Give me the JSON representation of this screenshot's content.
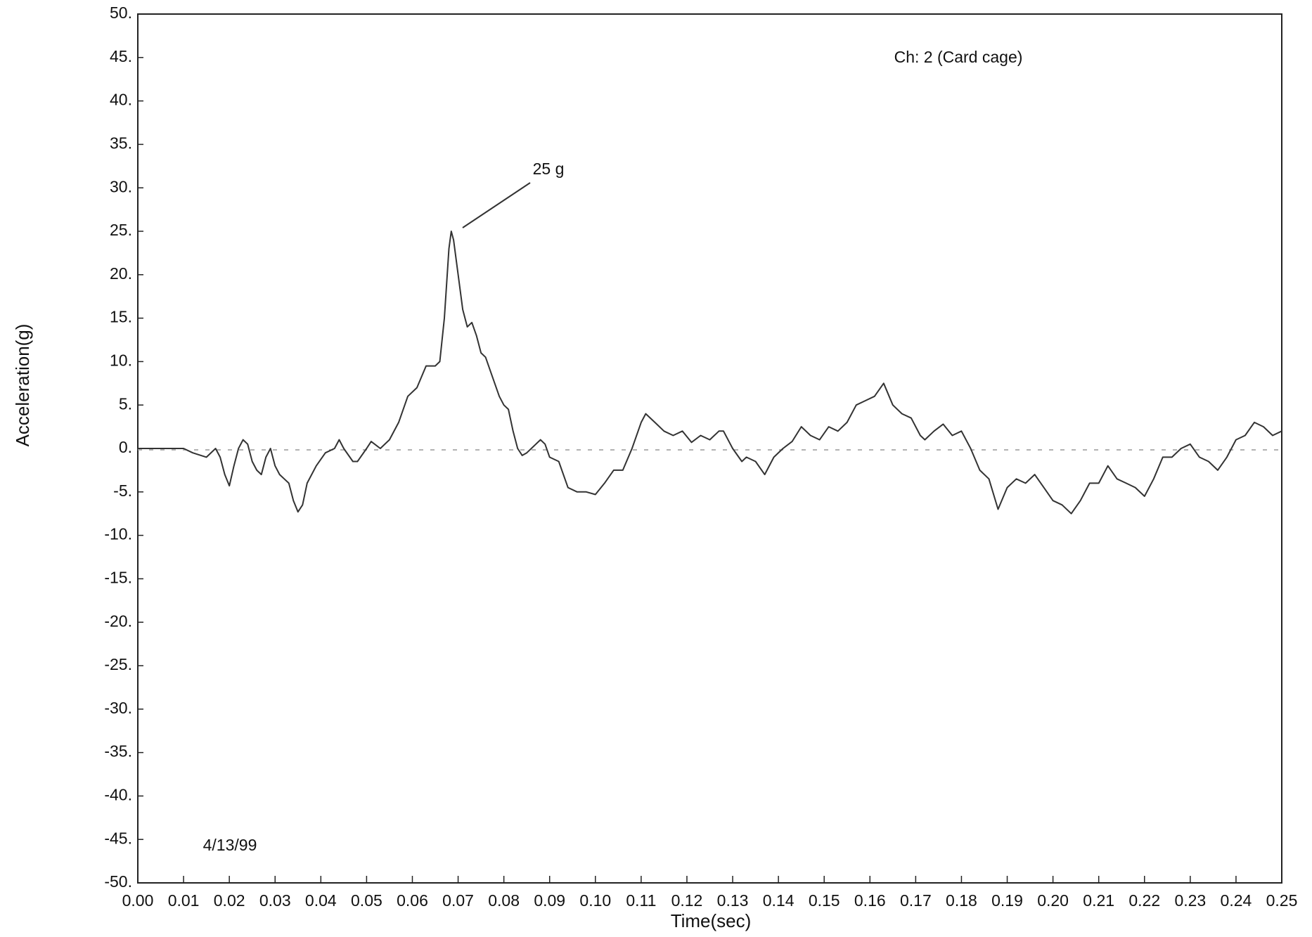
{
  "chart_data": {
    "type": "line",
    "xlabel": "Time(sec)",
    "ylabel": "Acceleration(g)",
    "annotations": [
      "Ch: 2 (Card cage)",
      "25 g",
      "4/13/99"
    ],
    "xlim": [
      0,
      0.25
    ],
    "ylim": [
      -50,
      50
    ],
    "xticks": [
      {
        "value": 0,
        "label": "0.00"
      },
      0.01,
      0.02,
      0.03,
      0.04,
      0.05,
      0.06,
      0.07,
      0.08,
      0.09,
      {
        "value": 0.1,
        "label": "0.10"
      },
      0.11,
      0.12,
      0.13,
      0.14,
      0.15,
      0.16,
      0.17,
      0.18,
      0.19,
      {
        "value": 0.2,
        "label": "0.20"
      },
      0.21,
      0.22,
      0.23,
      0.24,
      0.25
    ],
    "yticks": [
      {
        "value": 50,
        "label": "50."
      },
      {
        "value": 45,
        "label": "45."
      },
      {
        "value": 40,
        "label": "40."
      },
      {
        "value": 35,
        "label": "35."
      },
      {
        "value": 30,
        "label": "30."
      },
      {
        "value": 25,
        "label": "25."
      },
      {
        "value": 20,
        "label": "20."
      },
      {
        "value": 15,
        "label": "15."
      },
      {
        "value": 10,
        "label": "10."
      },
      {
        "value": 5,
        "label": "5."
      },
      {
        "value": 0,
        "label": "0."
      },
      {
        "value": -5,
        "label": "-5."
      },
      {
        "value": -10,
        "label": "-10."
      },
      {
        "value": -15,
        "label": "-15."
      },
      {
        "value": -20,
        "label": "-20."
      },
      {
        "value": -25,
        "label": "-25."
      },
      {
        "value": -30,
        "label": "-30."
      },
      {
        "value": -35,
        "label": "-35."
      },
      {
        "value": -40,
        "label": "-40."
      },
      {
        "value": -45,
        "label": "-45."
      },
      {
        "value": -50,
        "label": "-50."
      }
    ],
    "grid": false,
    "x": [
      0,
      0.01,
      0.012,
      0.015,
      0.017,
      0.018,
      0.019,
      0.02,
      0.021,
      0.022,
      0.023,
      0.024,
      0.025,
      0.026,
      0.027,
      0.028,
      0.029,
      0.03,
      0.031,
      0.032,
      0.033,
      0.034,
      0.035,
      0.036,
      0.037,
      0.039,
      0.041,
      0.043,
      0.044,
      0.045,
      0.047,
      0.048,
      0.05,
      0.051,
      0.053,
      0.055,
      0.057,
      0.059,
      0.061,
      0.063,
      0.065,
      0.066,
      0.067,
      0.068,
      0.0685,
      0.069,
      0.07,
      0.071,
      0.072,
      0.073,
      0.074,
      0.075,
      0.076,
      0.077,
      0.079,
      0.08,
      0.081,
      0.082,
      0.083,
      0.084,
      0.085,
      0.087,
      0.088,
      0.089,
      0.09,
      0.092,
      0.094,
      0.096,
      0.098,
      0.1,
      0.102,
      0.104,
      0.106,
      0.108,
      0.11,
      0.111,
      0.113,
      0.115,
      0.117,
      0.119,
      0.121,
      0.123,
      0.125,
      0.127,
      0.128,
      0.13,
      0.132,
      0.133,
      0.135,
      0.137,
      0.139,
      0.141,
      0.143,
      0.145,
      0.147,
      0.149,
      0.151,
      0.153,
      0.155,
      0.157,
      0.159,
      0.161,
      0.163,
      0.165,
      0.167,
      0.169,
      0.171,
      0.172,
      0.174,
      0.176,
      0.178,
      0.18,
      0.182,
      0.184,
      0.186,
      0.188,
      0.19,
      0.192,
      0.194,
      0.196,
      0.198,
      0.2,
      0.202,
      0.204,
      0.206,
      0.208,
      0.21,
      0.212,
      0.214,
      0.216,
      0.218,
      0.22,
      0.222,
      0.224,
      0.226,
      0.228,
      0.23,
      0.232,
      0.234,
      0.236,
      0.238,
      0.24,
      0.242,
      0.244,
      0.246,
      0.248,
      0.25
    ],
    "series": [
      {
        "color": "#333333",
        "values": [
          0,
          0,
          -0.5,
          -1,
          0,
          -1,
          -3,
          -4.3,
          -2,
          0,
          1,
          0.5,
          -1.5,
          -2.5,
          -3,
          -1,
          0,
          -2,
          -3,
          -3.5,
          -4,
          -6,
          -7.3,
          -6.5,
          -4,
          -2,
          -0.5,
          0,
          1,
          0,
          -1.5,
          -1.5,
          0,
          0.8,
          0,
          1,
          3,
          6,
          7,
          9.5,
          9.5,
          10,
          15,
          23,
          25,
          24,
          20,
          16,
          14,
          14.5,
          13,
          11,
          10.5,
          9,
          6,
          5,
          4.5,
          2,
          0,
          -0.8,
          -0.5,
          0.5,
          1,
          0.5,
          -1,
          -1.5,
          -4.5,
          -5,
          -5,
          -5.3,
          -4,
          -2.5,
          -2.5,
          0,
          3,
          4,
          3,
          2,
          1.5,
          2,
          0.7,
          1.5,
          1,
          2,
          2,
          0,
          -1.5,
          -1,
          -1.5,
          -3,
          -1,
          0,
          0.8,
          2.5,
          1.5,
          1,
          2.5,
          2,
          3,
          5,
          5.5,
          6,
          7.5,
          5,
          4,
          3.5,
          1.5,
          1,
          2,
          2.8,
          1.5,
          2,
          0,
          -2.5,
          -3.5,
          -7,
          -4.5,
          -3.5,
          -4,
          -3,
          -4.5,
          -6,
          -6.5,
          -7.5,
          -6,
          -4,
          -4,
          -2,
          -3.5,
          -4,
          -4.5,
          -5.5,
          -3.5,
          -1,
          -1,
          0,
          0.5,
          -1,
          -1.5,
          -2.5,
          -1,
          1,
          1.5,
          3,
          2.5,
          1.5,
          2
        ]
      }
    ]
  }
}
